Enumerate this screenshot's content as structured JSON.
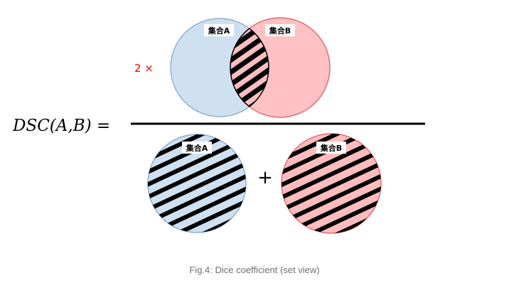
{
  "formula": {
    "lhs": "DSC(A,B) =",
    "multiplier": "2 ×",
    "plus": "+"
  },
  "sets": {
    "a_label": "集合A",
    "b_label": "集合B"
  },
  "caption": "Fig.4: Dice coefficient (set view)",
  "colors": {
    "set_a_fill": "#cfe0f1",
    "set_a_stroke": "#8fb0d2",
    "set_b_fill": "#ffbcbe",
    "set_b_stroke": "#e56a72",
    "hatch": "#000000",
    "multiplier": "#ff0000",
    "caption": "#707070"
  }
}
